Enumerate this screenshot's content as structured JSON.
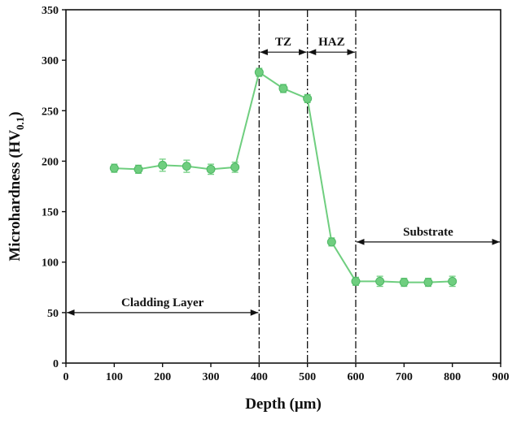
{
  "chart_data": {
    "type": "line",
    "xlabel": "Depth (μm)",
    "ylabel_main": "Microhardness (HV",
    "ylabel_sub": "0.1",
    "ylabel_close": ")",
    "xlim": [
      0,
      900
    ],
    "ylim": [
      0,
      350
    ],
    "xticks": [
      0,
      100,
      200,
      300,
      400,
      500,
      600,
      700,
      800,
      900
    ],
    "yticks": [
      0,
      50,
      100,
      150,
      200,
      250,
      300,
      350
    ],
    "grid": false,
    "series": [
      {
        "color": "#6fce7f",
        "x": [
          100,
          150,
          200,
          250,
          300,
          350,
          400,
          450,
          500,
          550,
          600,
          650,
          700,
          750,
          800
        ],
        "y": [
          193,
          192,
          196,
          195,
          192,
          194,
          288,
          272,
          262,
          120,
          81,
          81,
          80,
          80,
          81
        ],
        "err": [
          4,
          4,
          6,
          6,
          5,
          5,
          4,
          4,
          4,
          4,
          4,
          5,
          4,
          4,
          5
        ]
      }
    ],
    "vlines": [
      400,
      500,
      600
    ],
    "annotations": [
      {
        "id": "cladding",
        "text": "Cladding Layer",
        "x_from": 0,
        "x_to": 400,
        "y": 50
      },
      {
        "id": "tz",
        "text": "TZ",
        "x_from": 400,
        "x_to": 500,
        "y": 308
      },
      {
        "id": "haz",
        "text": "HAZ",
        "x_from": 500,
        "x_to": 600,
        "y": 308
      },
      {
        "id": "substrate",
        "text": "Substrate",
        "x_from": 600,
        "x_to": 900,
        "y": 120
      }
    ]
  }
}
